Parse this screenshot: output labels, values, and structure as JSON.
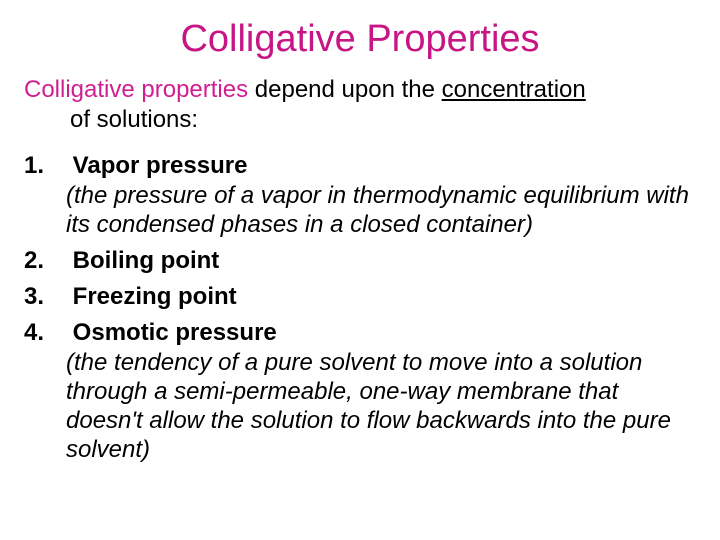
{
  "colors": {
    "title": "#c71585",
    "intro_accent": "#d02090",
    "body_text": "#000000",
    "background": "#ffffff"
  },
  "title": "Colligative Properties",
  "intro": {
    "accent": "Colligative properties",
    "rest_line1": " depend upon the ",
    "underlined": "concentration",
    "line2": "of solutions:"
  },
  "items": [
    {
      "head": "Vapor pressure",
      "desc": "(the pressure of a vapor in thermodynamic equilibrium with its condensed phases in a closed container)"
    },
    {
      "head": "Boiling point",
      "desc": ""
    },
    {
      "head": "Freezing point",
      "desc": ""
    },
    {
      "head": "Osmotic pressure",
      "desc": "(the tendency of a pure solvent to move into a solution through a semi-permeable, one-way membrane that doesn't allow the solution to flow backwards into the pure solvent)"
    }
  ]
}
